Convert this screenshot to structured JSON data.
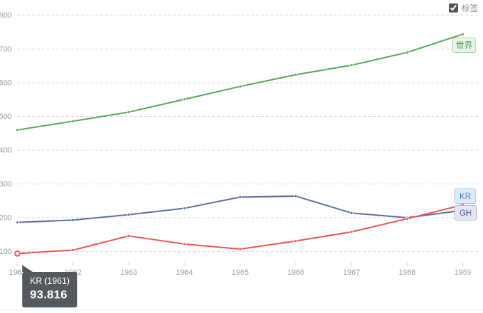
{
  "controls": {
    "labels_toggle": {
      "label": "标签",
      "checked": true
    }
  },
  "tooltip": {
    "title": "KR (1961)",
    "value": "93.816"
  },
  "chart_data": {
    "type": "line",
    "title": "",
    "xlabel": "",
    "ylabel": "",
    "x": [
      1961,
      1962,
      1963,
      1964,
      1965,
      1966,
      1967,
      1968,
      1969
    ],
    "yticks": [
      100,
      200,
      300,
      400,
      500,
      600,
      700,
      800
    ],
    "ylim": [
      60,
      820
    ],
    "grid": "horizontal-dashed",
    "legend_position": "end-of-line-labels",
    "series": [
      {
        "name": "世界",
        "color": "#57a65b",
        "label_bg": "#eaf4ea",
        "label_border": "#a6d0a6",
        "label_color": "#4d9b51",
        "values": [
          460,
          486,
          513,
          551,
          589,
          624,
          652,
          690,
          744
        ]
      },
      {
        "name": "KR",
        "color": "#ee5450",
        "label_bg": "#dcebf7",
        "label_border": "#9fc5e3",
        "label_color": "#4081c0",
        "values": [
          93.816,
          104,
          146,
          122,
          107,
          131,
          158,
          197,
          238
        ]
      },
      {
        "name": "GH",
        "color": "#5a6d9c",
        "label_bg": "#e6e6f4",
        "label_border": "#b6b6d9",
        "label_color": "#4f5b9d",
        "values": [
          186,
          193,
          209,
          228,
          261,
          264,
          214,
          200,
          222
        ]
      }
    ],
    "highlight": {
      "series": "KR",
      "year": 1961,
      "value": 93.816
    }
  },
  "axis_colors": {
    "grid": "#d9d9d9",
    "tick": "#cfcfcf",
    "text": "#9ba0a5"
  }
}
